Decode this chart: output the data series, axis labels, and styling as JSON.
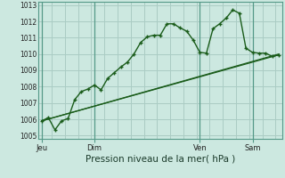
{
  "xlabel": "Pression niveau de la mer( hPa )",
  "background_color": "#cce8e0",
  "grid_color": "#aaccc4",
  "line_color": "#1a5c1a",
  "day_line_color": "#559988",
  "ylim": [
    1004.8,
    1013.2
  ],
  "yticks": [
    1005,
    1006,
    1007,
    1008,
    1009,
    1010,
    1011,
    1012,
    1013
  ],
  "day_labels": [
    "Jeu",
    "Dim",
    "Ven",
    "Sam"
  ],
  "day_positions": [
    0,
    8,
    24,
    32
  ],
  "xlim": [
    -0.5,
    36.5
  ],
  "line1_x": [
    0,
    1,
    2,
    3,
    4,
    5,
    6,
    7,
    8,
    9,
    10,
    11,
    12,
    13,
    14,
    15,
    16,
    17,
    18,
    19,
    20,
    21,
    22,
    23,
    24,
    25,
    26,
    27,
    28,
    29,
    30,
    31,
    32,
    33,
    34,
    35,
    36
  ],
  "line1_y": [
    1005.9,
    1006.1,
    1005.35,
    1005.9,
    1006.05,
    1007.2,
    1007.7,
    1007.85,
    1008.1,
    1007.8,
    1008.5,
    1008.85,
    1009.2,
    1009.5,
    1010.0,
    1010.7,
    1011.05,
    1011.15,
    1011.15,
    1011.85,
    1011.85,
    1011.6,
    1011.4,
    1010.85,
    1010.1,
    1010.05,
    1011.55,
    1011.85,
    1012.2,
    1012.7,
    1012.5,
    1010.35,
    1010.1,
    1010.05,
    1010.05,
    1009.85,
    1009.95
  ],
  "line2_x": [
    0,
    36
  ],
  "line2_y": [
    1005.9,
    1009.95
  ],
  "line3_x": [
    0,
    36
  ],
  "line3_y": [
    1005.9,
    1010.0
  ],
  "xlabel_fontsize": 7.5,
  "ytick_fontsize": 5.5,
  "xtick_fontsize": 6.0
}
